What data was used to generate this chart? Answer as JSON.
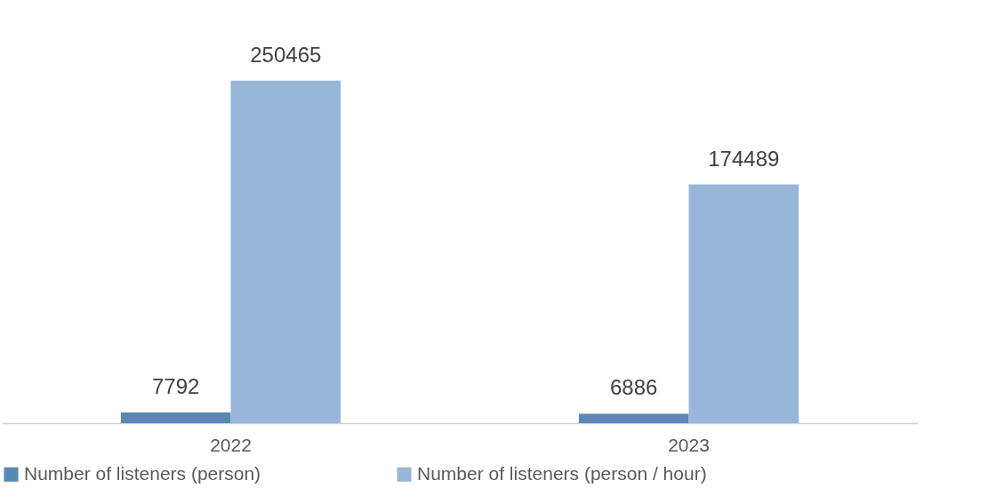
{
  "chart_data": {
    "type": "bar",
    "categories": [
      "2022",
      "2023"
    ],
    "series": [
      {
        "name": "Number of listeners (person)",
        "color": "#5b87b5",
        "values": [
          7792,
          6886
        ]
      },
      {
        "name": "Number of listeners (person / hour)",
        "color": "#98b6d9",
        "values": [
          250465,
          174489
        ]
      }
    ],
    "data_labels": true,
    "legend": "bottom"
  }
}
